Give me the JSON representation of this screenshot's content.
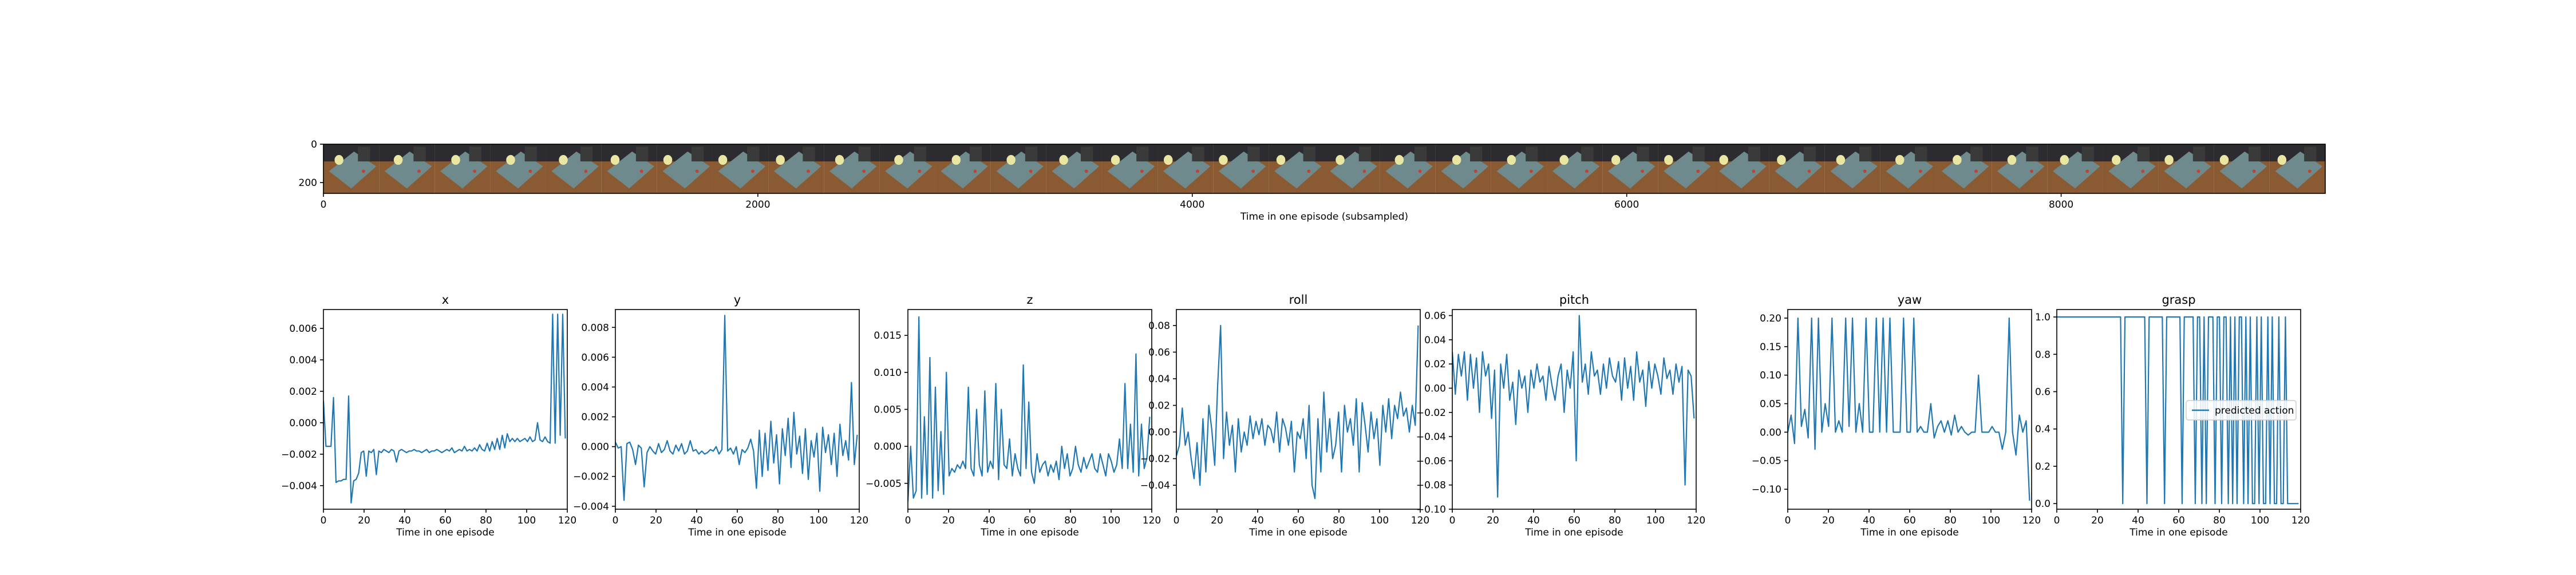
{
  "strip": {
    "xlabel": "Time in one episode (subsampled)",
    "xlim": [
      0,
      9216
    ],
    "ylim": [
      0,
      256
    ],
    "x_ticks": [
      "0",
      "2000",
      "4000",
      "6000",
      "8000"
    ],
    "x_tick_values": [
      0,
      2000,
      4000,
      6000,
      8000
    ],
    "y_ticks": [
      "0",
      "200"
    ],
    "y_tick_values": [
      0,
      200
    ],
    "frame_count": 36,
    "colors": {
      "floor": "#8a5a32",
      "table": "#6f8a8c",
      "bin": "#3a3a3a",
      "object": "#e8e6a0",
      "object_red": "#c8402c"
    }
  },
  "chart_data": [
    {
      "type": "line",
      "title": "x",
      "xlabel": "Time in one episode",
      "xlim": [
        0,
        120
      ],
      "ylim": [
        -0.0055,
        0.0072
      ],
      "x_ticks": [
        0,
        20,
        40,
        60,
        80,
        100,
        120
      ],
      "x_tick_labels": [
        "0",
        "20",
        "40",
        "60",
        "80",
        "100",
        "120"
      ],
      "y_ticks": [
        -0.004,
        -0.002,
        0.0,
        0.002,
        0.004,
        0.006
      ],
      "y_tick_labels": [
        "−0.004",
        "−0.002",
        "0.000",
        "0.002",
        "0.004",
        "0.006"
      ],
      "series": [
        {
          "values": [
            0.0014,
            -0.0015,
            -0.0015,
            -0.0015,
            0.0016,
            -0.0038,
            -0.0037,
            -0.0037,
            -0.0036,
            -0.0036,
            0.0017,
            -0.0051,
            -0.0037,
            -0.0036,
            -0.0032,
            -0.0019,
            -0.0018,
            -0.0034,
            -0.0018,
            -0.0019,
            -0.0017,
            -0.0033,
            -0.0018,
            -0.0019,
            -0.0017,
            -0.0018,
            -0.0019,
            -0.0017,
            -0.0018,
            -0.0025,
            -0.0018,
            -0.0017,
            -0.0018,
            -0.0019,
            -0.0018,
            -0.0018,
            -0.0017,
            -0.0018,
            -0.0018,
            -0.0019,
            -0.0018,
            -0.0017,
            -0.0019,
            -0.0018,
            -0.0018,
            -0.0017,
            -0.0018,
            -0.0019,
            -0.0018,
            -0.0017,
            -0.0018,
            -0.0016,
            -0.0019,
            -0.0018,
            -0.0017,
            -0.0018,
            -0.0015,
            -0.0018,
            -0.0017,
            -0.0018,
            -0.0016,
            -0.0018,
            -0.0014,
            -0.0017,
            -0.0018,
            -0.0013,
            -0.0018,
            -0.0012,
            -0.0017,
            -0.001,
            -0.0017,
            -0.0008,
            -0.0016,
            -0.0007,
            -0.0012,
            -0.001,
            -0.0012,
            -0.001,
            -0.0012,
            -0.0011,
            -0.001,
            -0.0012,
            -0.0009,
            -0.0012,
            -0.0011,
            0.0,
            -0.0011,
            -0.0012,
            -0.0009,
            -0.0012,
            -0.0013,
            0.0069,
            -0.0013,
            0.0069,
            -0.0008,
            0.0069,
            -0.001
          ]
        }
      ]
    },
    {
      "type": "line",
      "title": "y",
      "xlabel": "Time in one episode",
      "xlim": [
        0,
        120
      ],
      "ylim": [
        -0.0042,
        0.0092
      ],
      "x_ticks": [
        0,
        20,
        40,
        60,
        80,
        100,
        120
      ],
      "x_tick_labels": [
        "0",
        "20",
        "40",
        "60",
        "80",
        "100",
        "120"
      ],
      "y_ticks": [
        -0.004,
        -0.002,
        0.0,
        0.002,
        0.004,
        0.006,
        0.008
      ],
      "y_tick_labels": [
        "−0.004",
        "−0.002",
        "0.000",
        "0.002",
        "0.004",
        "0.006",
        "0.008"
      ],
      "series": [
        {
          "values": [
            0.0003,
            -0.0001,
            0.0,
            -0.0036,
            0.0002,
            0.0003,
            -0.0002,
            -0.0012,
            0.0001,
            -0.0001,
            -0.0027,
            -0.0004,
            0.0,
            -0.0003,
            -0.0005,
            0.0002,
            -0.0004,
            -0.0002,
            0.0004,
            -0.0003,
            -0.0005,
            0.0001,
            -0.0003,
            0.0002,
            -0.0005,
            -0.0003,
            0.0004,
            -0.0003,
            -0.0002,
            -0.0005,
            -0.0003,
            -0.0005,
            -0.0004,
            -0.0002,
            -0.0003,
            0.0,
            -0.0005,
            -0.0002,
            0.0088,
            -0.0003,
            -0.0001,
            -0.0005,
            0.0,
            -0.0012,
            -0.0002,
            -0.0004,
            -0.0001,
            0.0005,
            -0.0003,
            -0.0028,
            0.0011,
            -0.002,
            0.0009,
            -0.0016,
            0.0017,
            -0.0011,
            0.0008,
            -0.0025,
            0.0012,
            -0.0006,
            0.0019,
            -0.0014,
            0.0023,
            -0.0005,
            0.0007,
            -0.0018,
            0.0012,
            -0.0022,
            0.0004,
            -0.0007,
            0.0009,
            -0.003,
            0.0013,
            -0.0004,
            0.0008,
            -0.0012,
            0.0009,
            -0.002,
            0.0015,
            -0.0006,
            0.0004,
            -0.0009,
            0.0043,
            -0.0012,
            0.0008
          ]
        }
      ]
    },
    {
      "type": "line",
      "title": "z",
      "xlabel": "Time in one episode",
      "xlim": [
        0,
        120
      ],
      "ylim": [
        -0.0085,
        0.0185
      ],
      "x_ticks": [
        0,
        20,
        40,
        60,
        80,
        100,
        120
      ],
      "x_tick_labels": [
        "0",
        "20",
        "40",
        "60",
        "80",
        "100",
        "120"
      ],
      "y_ticks": [
        -0.005,
        0.0,
        0.005,
        0.01,
        0.015
      ],
      "y_tick_labels": [
        "−0.005",
        "0.000",
        "0.005",
        "0.010",
        "0.015"
      ],
      "series": [
        {
          "values": [
            -0.0075,
            0.0,
            -0.007,
            -0.006,
            0.0175,
            -0.007,
            0.004,
            -0.0065,
            0.012,
            -0.007,
            0.008,
            -0.006,
            0.002,
            -0.0065,
            0.01,
            -0.004,
            -0.003,
            -0.0035,
            -0.0025,
            -0.003,
            -0.002,
            -0.003,
            0.008,
            -0.003,
            -0.004,
            0.005,
            -0.0025,
            -0.004,
            0.0075,
            -0.0035,
            -0.002,
            -0.003,
            0.0085,
            -0.0045,
            0.005,
            -0.0025,
            -0.003,
            0.001,
            -0.004,
            -0.001,
            -0.003,
            -0.004,
            0.011,
            -0.003,
            0.006,
            -0.0035,
            -0.005,
            -0.001,
            -0.0035,
            -0.0025,
            -0.002,
            -0.004,
            -0.0025,
            -0.0035,
            -0.002,
            -0.0045,
            0.0,
            -0.003,
            -0.001,
            -0.004,
            -0.003,
            0.0,
            -0.0025,
            -0.0035,
            -0.0015,
            -0.003,
            -0.002,
            -0.001,
            -0.003,
            -0.0035,
            -0.001,
            -0.0025,
            -0.004,
            -0.001,
            -0.002,
            -0.0035,
            -0.0025,
            0.001,
            -0.003,
            0.0085,
            -0.003,
            0.003,
            -0.0035,
            0.0125,
            -0.004,
            0.003,
            -0.003,
            -0.0015,
            0.004
          ]
        }
      ]
    },
    {
      "type": "line",
      "title": "roll",
      "xlabel": "Time in one episode",
      "xlim": [
        0,
        120
      ],
      "ylim": [
        -0.058,
        0.092
      ],
      "x_ticks": [
        0,
        20,
        40,
        60,
        80,
        100,
        120
      ],
      "x_tick_labels": [
        "0",
        "20",
        "40",
        "60",
        "80",
        "100",
        "120"
      ],
      "y_ticks": [
        -0.04,
        -0.02,
        0.0,
        0.02,
        0.04,
        0.06,
        0.08
      ],
      "y_tick_labels": [
        "−0.04",
        "−0.02",
        "0.00",
        "0.02",
        "0.04",
        "0.06",
        "0.08"
      ],
      "series": [
        {
          "values": [
            -0.018,
            -0.01,
            0.018,
            -0.01,
            0.0,
            -0.02,
            -0.035,
            -0.008,
            -0.04,
            0.01,
            -0.03,
            0.02,
            0.002,
            -0.025,
            0.035,
            0.08,
            -0.02,
            0.015,
            -0.01,
            0.005,
            -0.03,
            0.01,
            -0.015,
            0.0,
            -0.01,
            0.012,
            -0.005,
            0.008,
            -0.002,
            0.01,
            -0.01,
            0.005,
            0.002,
            -0.008,
            0.015,
            -0.015,
            0.01,
            0.003,
            -0.01,
            0.008,
            -0.03,
            0.0,
            -0.005,
            0.01,
            -0.02,
            0.02,
            -0.04,
            -0.05,
            0.01,
            -0.03,
            0.03,
            -0.015,
            0.01,
            -0.02,
            -0.01,
            0.015,
            -0.03,
            0.02,
            0.0,
            0.01,
            -0.01,
            0.025,
            -0.03,
            0.022,
            0.005,
            -0.015,
            0.015,
            -0.005,
            0.01,
            -0.025,
            0.02,
            0.0,
            0.025,
            -0.005,
            0.02,
            0.01,
            0.03,
            0.012,
            0.018,
            0.0,
            0.02,
            0.005,
            0.08
          ]
        }
      ]
    },
    {
      "type": "line",
      "title": "pitch",
      "xlabel": "Time in one episode",
      "xlim": [
        0,
        120
      ],
      "ylim": [
        -0.1,
        0.065
      ],
      "x_ticks": [
        0,
        20,
        40,
        60,
        80,
        100,
        120
      ],
      "x_tick_labels": [
        "0",
        "20",
        "40",
        "60",
        "80",
        "100",
        "120"
      ],
      "y_ticks": [
        -0.1,
        -0.08,
        -0.06,
        -0.04,
        -0.02,
        0.0,
        0.02,
        0.04,
        0.06
      ],
      "y_tick_labels": [
        "−0.10",
        "−0.08",
        "−0.06",
        "−0.04",
        "−0.02",
        "0.00",
        "0.02",
        "0.04",
        "0.06"
      ],
      "series": [
        {
          "values": [
            0.03,
            -0.005,
            0.028,
            0.01,
            0.03,
            -0.01,
            0.028,
            0.0,
            0.025,
            -0.02,
            0.03,
            0.01,
            0.02,
            -0.025,
            0.015,
            -0.09,
            0.02,
            0.0,
            0.028,
            -0.01,
            0.005,
            -0.03,
            0.015,
            0.0,
            0.01,
            -0.02,
            0.015,
            0.0,
            0.02,
            0.005,
            0.01,
            -0.01,
            0.018,
            0.002,
            -0.01,
            0.01,
            0.02,
            -0.02,
            0.015,
            0.0,
            0.03,
            -0.06,
            0.06,
            0.005,
            0.02,
            -0.005,
            0.03,
            0.01,
            0.015,
            -0.005,
            0.02,
            0.0,
            0.025,
            0.01,
            0.005,
            0.022,
            -0.01,
            0.025,
            0.0,
            0.018,
            -0.01,
            0.03,
            0.005,
            0.015,
            -0.015,
            0.022,
            0.0,
            0.02,
            0.01,
            -0.005,
            0.025,
            0.008,
            0.015,
            -0.005,
            0.02,
            0.005,
            0.018,
            -0.08,
            0.015,
            0.01,
            -0.025
          ]
        }
      ]
    },
    {
      "type": "line",
      "title": "yaw",
      "xlabel": "Time in one episode",
      "xlim": [
        0,
        120
      ],
      "ylim": [
        -0.135,
        0.215
      ],
      "x_ticks": [
        0,
        20,
        40,
        60,
        80,
        100,
        120
      ],
      "x_tick_labels": [
        "0",
        "20",
        "40",
        "60",
        "80",
        "100",
        "120"
      ],
      "y_ticks": [
        -0.1,
        -0.05,
        0.0,
        0.05,
        0.1,
        0.15,
        0.2
      ],
      "y_tick_labels": [
        "−0.10",
        "−0.05",
        "0.00",
        "0.05",
        "0.10",
        "0.15",
        "0.20"
      ],
      "series": [
        {
          "values": [
            0.0,
            0.03,
            -0.02,
            0.2,
            0.01,
            0.04,
            -0.01,
            0.2,
            -0.03,
            0.2,
            0.0,
            0.05,
            0.01,
            0.2,
            0.0,
            0.02,
            0.0,
            0.2,
            0.01,
            0.2,
            0.0,
            0.05,
            0.0,
            0.2,
            0.0,
            0.0,
            0.2,
            0.0,
            0.2,
            0.0,
            0.2,
            0.0,
            0.0,
            0.0,
            0.2,
            0.0,
            0.0,
            0.2,
            0.0,
            0.01,
            0.0,
            0.0,
            0.05,
            -0.01,
            0.01,
            0.02,
            0.0,
            0.02,
            -0.005,
            0.03,
            0.0,
            0.01,
            0.0,
            -0.005,
            0.0,
            0.0,
            0.1,
            0.0,
            0.0,
            0.0,
            0.01,
            0.0,
            0.0,
            -0.03,
            0.0,
            0.2,
            0.0,
            -0.04,
            0.03,
            0.0,
            0.02,
            -0.12
          ]
        }
      ]
    },
    {
      "type": "line",
      "title": "grasp",
      "xlabel": "Time in one episode",
      "xlim": [
        0,
        120
      ],
      "ylim": [
        -0.03,
        1.04
      ],
      "x_ticks": [
        0,
        20,
        40,
        60,
        80,
        100,
        120
      ],
      "x_tick_labels": [
        "0",
        "20",
        "40",
        "60",
        "80",
        "100",
        "120"
      ],
      "y_ticks": [
        0.0,
        0.2,
        0.4,
        0.6,
        0.8,
        1.0
      ],
      "y_tick_labels": [
        "0.0",
        "0.2",
        "0.4",
        "0.6",
        "0.8",
        "1.0"
      ],
      "legend": {
        "position": "center-right",
        "entries": [
          "predicted action"
        ]
      },
      "series": [
        {
          "name": "predicted action",
          "values": [
            1,
            1,
            1,
            1,
            1,
            1,
            1,
            1,
            1,
            1,
            1,
            1,
            1,
            1,
            1,
            1,
            1,
            1,
            1,
            1,
            1,
            1,
            1,
            1,
            1,
            1,
            1,
            1,
            1,
            1,
            0,
            1,
            1,
            1,
            1,
            1,
            1,
            1,
            1,
            1,
            1,
            0,
            1,
            1,
            1,
            1,
            1,
            1,
            1,
            0,
            1,
            1,
            1,
            1,
            1,
            1,
            1,
            0,
            1,
            1,
            1,
            1,
            1,
            0,
            1,
            1,
            0,
            1,
            0,
            1,
            1,
            1,
            0,
            1,
            1,
            0,
            1,
            1,
            0,
            1,
            0,
            1,
            0,
            1,
            1,
            0,
            1,
            0,
            1,
            0,
            0,
            1,
            0,
            1,
            0,
            0,
            1,
            0,
            1,
            0,
            0,
            1,
            0,
            0,
            1,
            0,
            0,
            0,
            0,
            0,
            0
          ]
        }
      ]
    }
  ]
}
